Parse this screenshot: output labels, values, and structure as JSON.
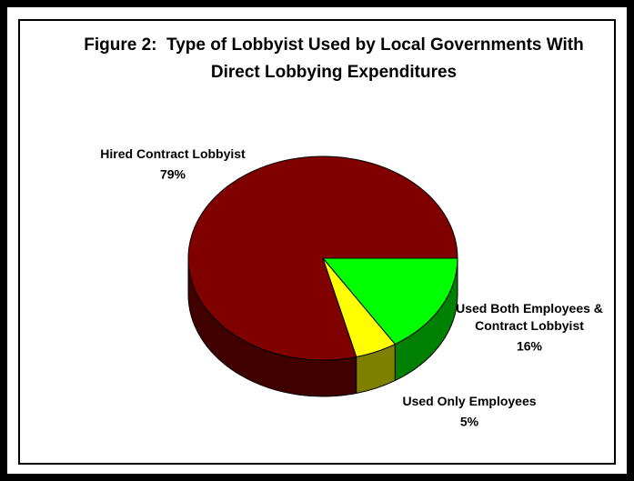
{
  "chart_data": {
    "type": "pie",
    "title": "Figure 2:  Type of Lobbyist Used by Local Governments With Direct Lobbying Expenditures",
    "categories": [
      "Hired Contract Lobbyist",
      "Used Both Employees & Contract Lobbyist",
      "Used Only Employees"
    ],
    "values": [
      79,
      16,
      5
    ],
    "value_labels": [
      "79%",
      "16%",
      "5%"
    ],
    "colors": [
      "#800000",
      "#00ff00",
      "#ffff00"
    ]
  }
}
